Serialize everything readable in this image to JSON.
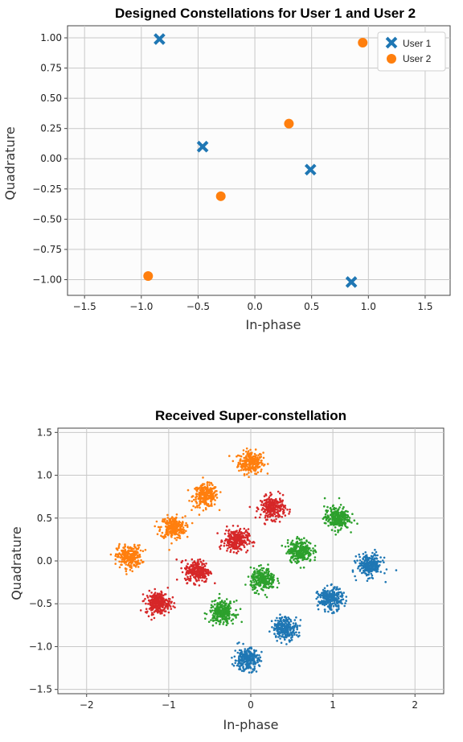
{
  "chart_data": [
    {
      "type": "scatter",
      "title": "Designed Constellations for User 1 and User 2",
      "xlabel": "In-phase",
      "ylabel": "Quadrature",
      "xlim": [
        -1.65,
        1.72
      ],
      "ylim": [
        -1.13,
        1.1
      ],
      "xticks": [
        "−1.5",
        "−1.0",
        "−0.5",
        "0.0",
        "0.5",
        "1.0",
        "1.5"
      ],
      "xtick_values": [
        -1.5,
        -1.0,
        -0.5,
        0.0,
        0.5,
        1.0,
        1.5
      ],
      "yticks": [
        "1.00",
        "0.75",
        "0.50",
        "0.25",
        "0.00",
        "−0.25",
        "−0.50",
        "−0.75",
        "−1.00"
      ],
      "ytick_values": [
        1.0,
        0.75,
        0.5,
        0.25,
        0.0,
        -0.25,
        -0.5,
        -0.75,
        -1.0
      ],
      "grid": true,
      "legend_position": "top-right",
      "series": [
        {
          "name": "User 1",
          "marker": "x",
          "color": "#1f77b4",
          "points": [
            [
              -0.84,
              0.99
            ],
            [
              -0.46,
              0.1
            ],
            [
              0.49,
              -0.09
            ],
            [
              0.85,
              -1.02
            ]
          ]
        },
        {
          "name": "User 2",
          "marker": "o",
          "color": "#ff7f0e",
          "points": [
            [
              -0.94,
              -0.97
            ],
            [
              -0.3,
              -0.31
            ],
            [
              0.3,
              0.29
            ],
            [
              0.95,
              0.96
            ]
          ]
        }
      ]
    },
    {
      "type": "scatter",
      "title": "Received Super-constellation",
      "xlabel": "In-phase",
      "ylabel": "Quadrature",
      "xlim": [
        -2.35,
        2.35
      ],
      "ylim": [
        -1.55,
        1.55
      ],
      "xticks": [
        "−2",
        "−1",
        "0",
        "1",
        "2"
      ],
      "xtick_values": [
        -2,
        -1,
        0,
        1,
        2
      ],
      "yticks": [
        "1.5",
        "1.0",
        "0.5",
        "0.0",
        "−0.5",
        "−1.0",
        "−1.5"
      ],
      "ytick_values": [
        1.5,
        1.0,
        0.5,
        0.0,
        -0.5,
        -1.0,
        -1.5
      ],
      "grid": true,
      "clusters": [
        {
          "color": "#ff7f0e",
          "centers": [
            [
              0.0,
              1.15
            ],
            [
              -0.55,
              0.76
            ],
            [
              -0.95,
              0.39
            ],
            [
              -1.48,
              0.05
            ]
          ]
        },
        {
          "color": "#d62728",
          "centers": [
            [
              0.27,
              0.62
            ],
            [
              -0.18,
              0.24
            ],
            [
              -0.65,
              -0.12
            ],
            [
              -1.13,
              -0.49
            ]
          ]
        },
        {
          "color": "#2ca02c",
          "centers": [
            [
              1.05,
              0.5
            ],
            [
              0.6,
              0.12
            ],
            [
              0.15,
              -0.22
            ],
            [
              -0.35,
              -0.6
            ]
          ]
        },
        {
          "color": "#1f77b4",
          "centers": [
            [
              1.45,
              -0.05
            ],
            [
              0.97,
              -0.45
            ],
            [
              0.42,
              -0.78
            ],
            [
              -0.05,
              -1.15
            ]
          ]
        }
      ]
    }
  ]
}
